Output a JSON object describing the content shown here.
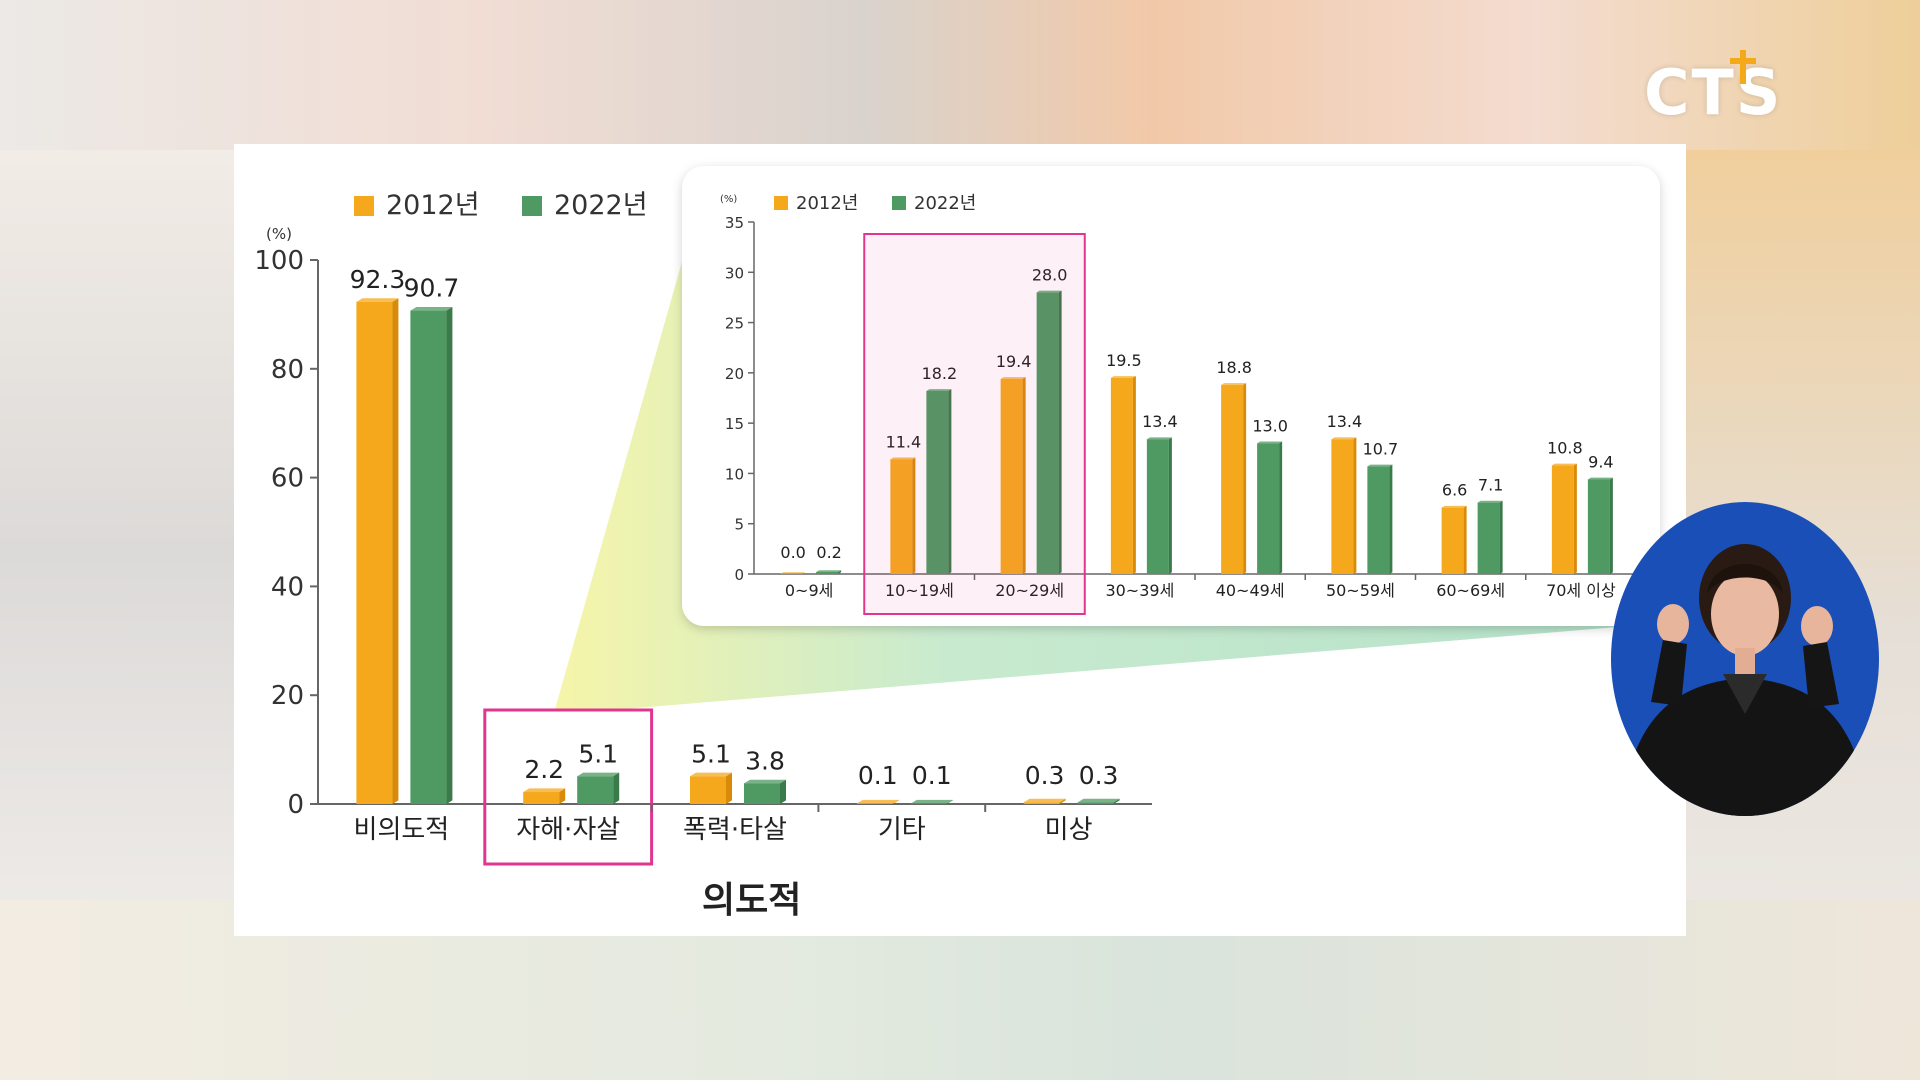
{
  "branding": {
    "logo_text": "CTS",
    "accent": "#f3a91a"
  },
  "colors": {
    "y2012": "#f6a81c",
    "y2022": "#4f9a62",
    "highlight": "#e0368f",
    "inset_bg": "#ffffff"
  },
  "chart_data": [
    {
      "type": "bar",
      "legend": [
        "2012년",
        "2022년"
      ],
      "unit": "(%)",
      "categories": [
        "비의도적",
        "자해·자살",
        "폭력·타살",
        "기타",
        "미상"
      ],
      "series": [
        {
          "name": "2012년",
          "values": [
            92.3,
            2.2,
            5.1,
            0.1,
            0.3
          ]
        },
        {
          "name": "2022년",
          "values": [
            90.7,
            5.1,
            3.8,
            0.1,
            0.3
          ]
        }
      ],
      "data_labels": [
        [
          "92.3",
          "2.2",
          "5.1",
          "0.1",
          "0.3"
        ],
        [
          "90.7",
          "5.1",
          "3.8",
          "0.1",
          "0.3"
        ]
      ],
      "y_ticks": [
        "0",
        "20",
        "40",
        "60",
        "80",
        "100"
      ],
      "ylim": [
        0,
        100
      ],
      "group_label": "의도적",
      "highlighted_category": "자해·자살"
    },
    {
      "type": "bar",
      "legend": [
        "2012년",
        "2022년"
      ],
      "unit": "(%)",
      "categories": [
        "0~9세",
        "10~19세",
        "20~29세",
        "30~39세",
        "40~49세",
        "50~59세",
        "60~69세",
        "70세 이상"
      ],
      "series": [
        {
          "name": "2012년",
          "values": [
            0.0,
            11.4,
            19.4,
            19.5,
            18.8,
            13.4,
            6.6,
            10.8
          ]
        },
        {
          "name": "2022년",
          "values": [
            0.2,
            18.2,
            28.0,
            13.4,
            13.0,
            10.7,
            7.1,
            9.4
          ]
        }
      ],
      "data_labels": [
        [
          "0.0",
          "11.4",
          "19.4",
          "19.5",
          "18.8",
          "13.4",
          "6.6",
          "10.8"
        ],
        [
          "0.2",
          "18.2",
          "28.0",
          "13.4",
          "13.0",
          "10.7",
          "7.1",
          "9.4"
        ]
      ],
      "y_ticks": [
        "0",
        "5",
        "10",
        "15",
        "20",
        "25",
        "30",
        "35"
      ],
      "ylim": [
        0,
        35
      ],
      "highlighted_categories": [
        "10~19세",
        "20~29세"
      ]
    }
  ]
}
